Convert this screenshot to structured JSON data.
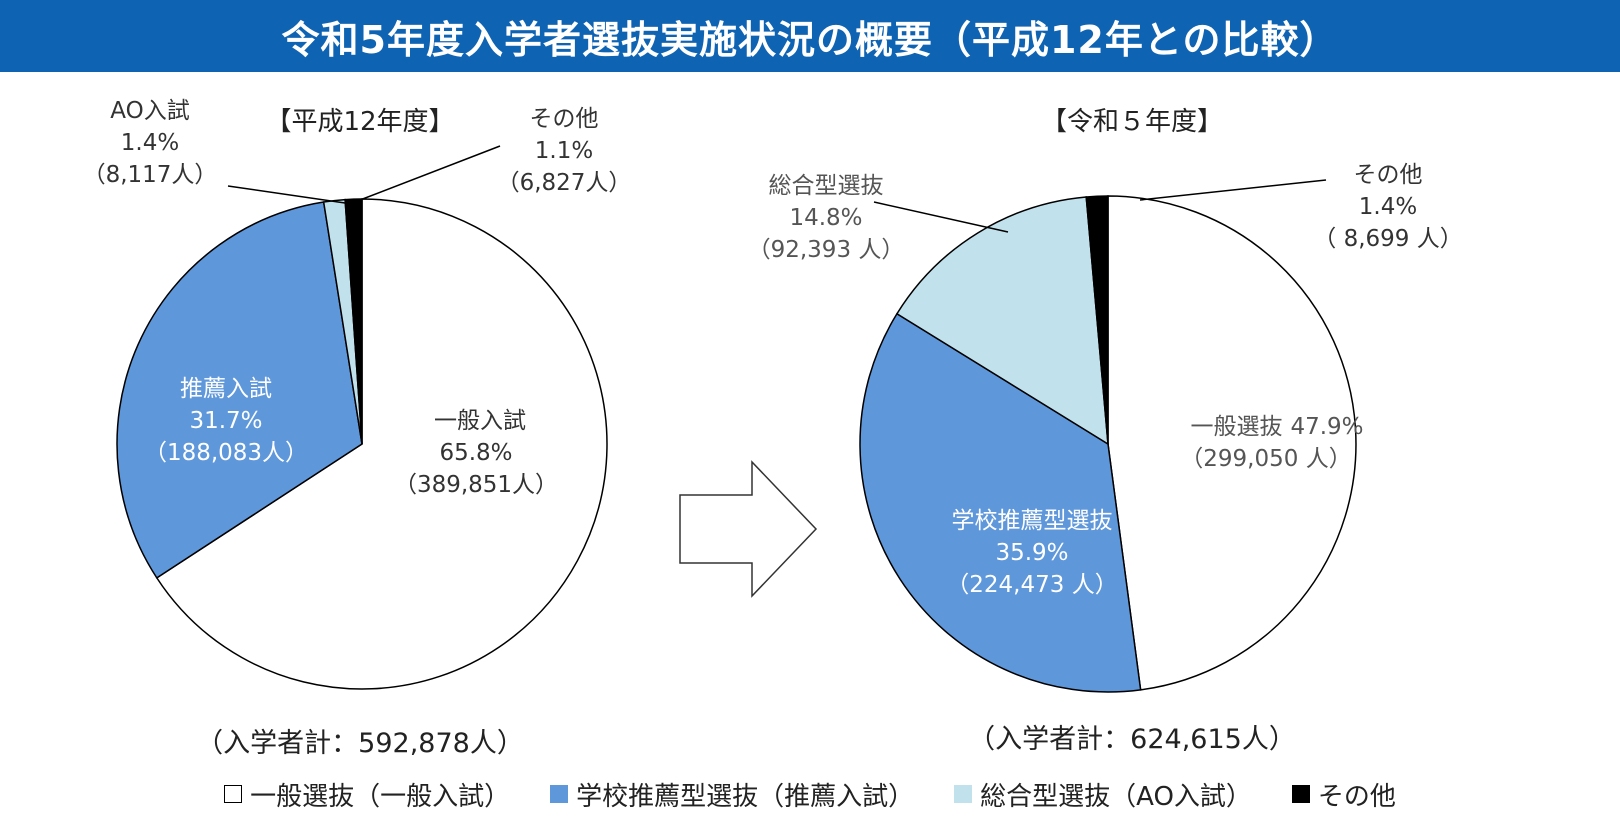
{
  "title": "令和5年度入学者選抜実施状況の概要（平成12年との比較）",
  "colors": {
    "general": "#ffffff",
    "school_recommend": "#5f97db",
    "comprehensive": "#c1e2ec",
    "other": "#000000",
    "title_bg": "#0e63b3"
  },
  "chart_data": [
    {
      "type": "pie",
      "title": "【平成12年度】",
      "total_label": "（入学者計：592,878人）",
      "slices": [
        {
          "name": "一般入試",
          "value": 65.8,
          "percent_label": "65.8%",
          "count_label": "（389,851人）",
          "color": "#ffffff"
        },
        {
          "name": "推薦入試",
          "value": 31.7,
          "percent_label": "31.7%",
          "count_label": "（188,083人）",
          "color": "#5f97db"
        },
        {
          "name": "AO入試",
          "value": 1.4,
          "percent_label": "1.4%",
          "count_label": "（8,117人）",
          "color": "#c1e2ec"
        },
        {
          "name": "その他",
          "value": 1.1,
          "percent_label": "1.1%",
          "count_label": "（6,827人）",
          "color": "#000000"
        }
      ]
    },
    {
      "type": "pie",
      "title": "【令和５年度】",
      "total_label": "（入学者計：624,615人）",
      "slices": [
        {
          "name": "一般選抜",
          "value": 47.9,
          "percent_label": "47.9%",
          "count_label": "（299,050 人）",
          "color": "#ffffff"
        },
        {
          "name": "学校推薦型選抜",
          "value": 35.9,
          "percent_label": "35.9%",
          "count_label": "（224,473 人）",
          "color": "#5f97db"
        },
        {
          "name": "総合型選抜",
          "value": 14.8,
          "percent_label": "14.8%",
          "count_label": "（92,393 人）",
          "color": "#c1e2ec"
        },
        {
          "name": "その他",
          "value": 1.4,
          "percent_label": "1.4%",
          "count_label": "（ 8,699 人）",
          "color": "#000000"
        }
      ]
    }
  ],
  "legend": [
    {
      "label": "一般選抜（一般入試）",
      "color": "#ffffff"
    },
    {
      "label": "学校推薦型選抜（推薦入試）",
      "color": "#5f97db"
    },
    {
      "label": "総合型選抜（AO入試）",
      "color": "#c1e2ec"
    },
    {
      "label": "その他",
      "color": "#000000"
    }
  ]
}
